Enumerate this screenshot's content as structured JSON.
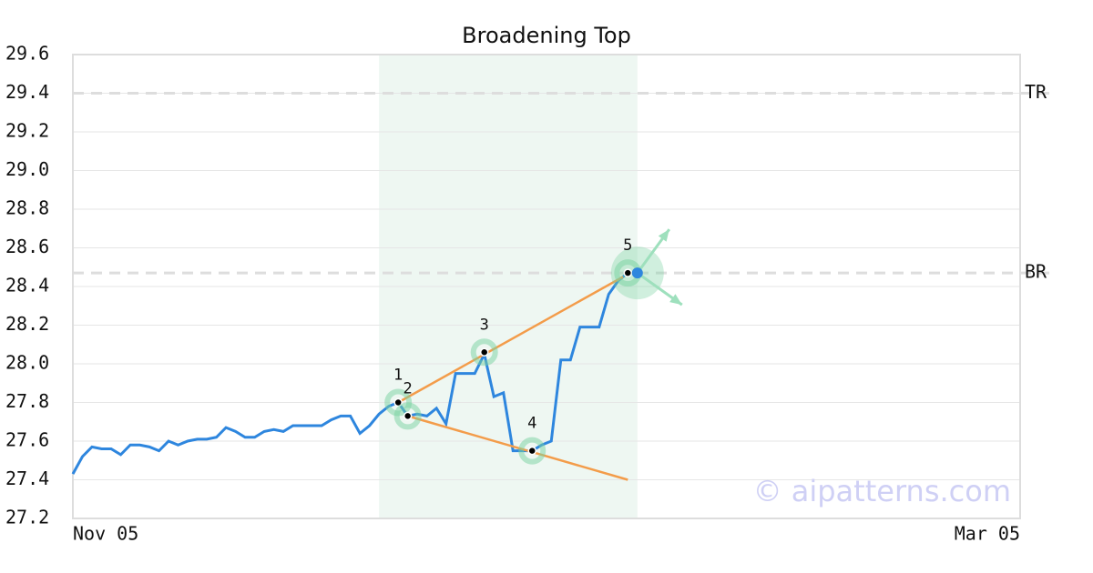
{
  "chart_data": {
    "type": "line",
    "title": "Broadening Top",
    "x": [
      0,
      1,
      2,
      3,
      4,
      5,
      6,
      7,
      8,
      9,
      10,
      11,
      12,
      13,
      14,
      15,
      16,
      17,
      18,
      19,
      20,
      21,
      22,
      23,
      24,
      25,
      26,
      27,
      28,
      29,
      30,
      31,
      32,
      33,
      34,
      35,
      36,
      37,
      38,
      39,
      40,
      41,
      42,
      43,
      44,
      45,
      46,
      47,
      48,
      49,
      50,
      51,
      52,
      53,
      54,
      55,
      56,
      57,
      58,
      59
    ],
    "values": [
      27.43,
      27.52,
      27.57,
      27.56,
      27.56,
      27.53,
      27.58,
      27.58,
      27.57,
      27.55,
      27.6,
      27.58,
      27.6,
      27.61,
      27.61,
      27.62,
      27.67,
      27.65,
      27.62,
      27.62,
      27.65,
      27.66,
      27.65,
      27.68,
      27.68,
      27.68,
      27.68,
      27.71,
      27.73,
      27.73,
      27.64,
      27.68,
      27.74,
      27.78,
      27.8,
      27.73,
      27.74,
      27.73,
      27.77,
      27.69,
      27.95,
      27.95,
      27.95,
      28.05,
      27.83,
      27.85,
      27.55,
      27.55,
      27.55,
      27.58,
      27.6,
      28.02,
      28.02,
      28.19,
      28.19,
      28.19,
      28.36,
      28.43,
      28.47,
      28.47
    ],
    "color": "#2e86de",
    "xlim": [
      0,
      99
    ],
    "xticks": [
      {
        "value": 0,
        "label": "Nov 05"
      },
      {
        "value": 99,
        "label": "Mar 05"
      }
    ],
    "ylim": [
      27.2,
      29.6
    ],
    "yticks": [
      27.2,
      27.4,
      27.6,
      27.8,
      {
        "value": 28,
        "label": "28.0"
      },
      28.2,
      28.4,
      28.6,
      28.8,
      {
        "value": 29,
        "label": "29.0"
      },
      29.2,
      29.4,
      29.6
    ],
    "grid": true,
    "highlight_range": [
      32,
      59
    ],
    "levels": [
      {
        "label": "TR",
        "value": 29.4
      },
      {
        "label": "BR",
        "value": 28.47
      }
    ],
    "trendlines": [
      {
        "x": [
          34,
          57.5
        ],
        "y": [
          27.8,
          28.45
        ],
        "color": "#f39c4a"
      },
      {
        "x": [
          35,
          58
        ],
        "y": [
          27.73,
          27.4
        ],
        "color": "#f39c4a"
      }
    ],
    "pattern_points": [
      {
        "label": "1",
        "x": 34,
        "y": 27.8
      },
      {
        "label": "2",
        "x": 35,
        "y": 27.73
      },
      {
        "label": "3",
        "x": 43,
        "y": 28.06
      },
      {
        "label": "4",
        "x": 48,
        "y": 27.55
      },
      {
        "label": "5",
        "x": 58,
        "y": 28.47
      }
    ],
    "current_point": {
      "x": 59,
      "y": 28.47
    },
    "watermark": "© aipatterns.com"
  }
}
